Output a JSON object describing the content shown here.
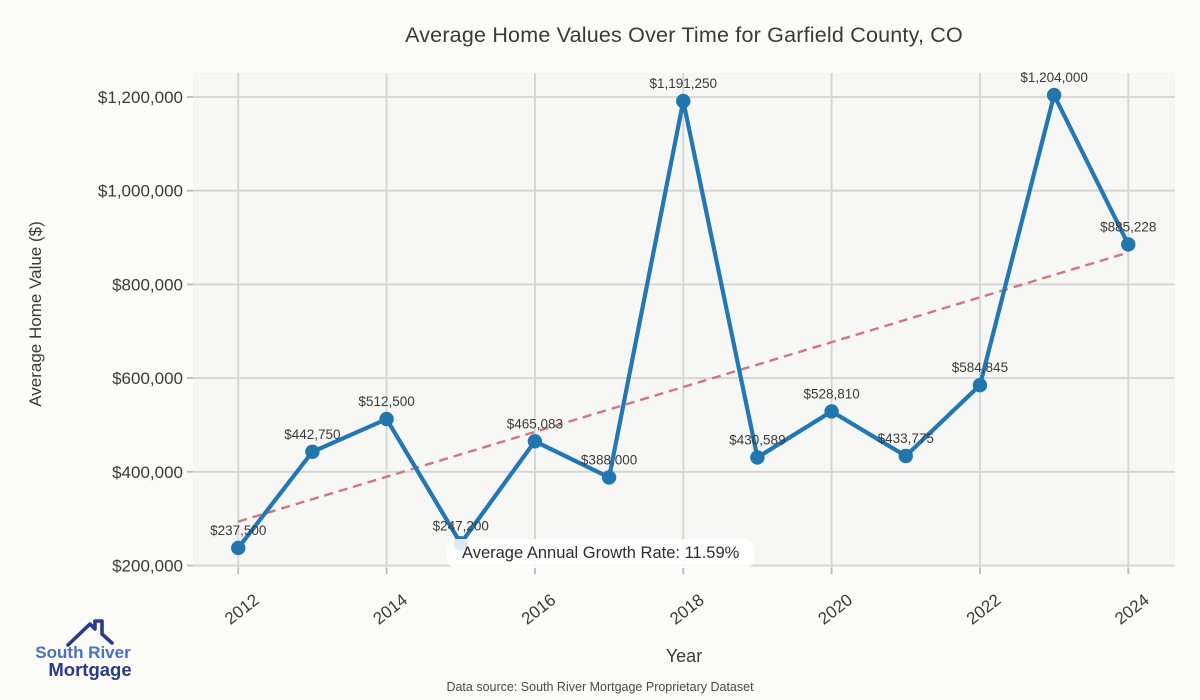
{
  "title": "Average Home Values Over Time for Garfield County, CO",
  "axes": {
    "x_label": "Year",
    "y_label": "Average Home Value ($)",
    "x_tick_labels": [
      "2012",
      "2014",
      "2016",
      "2018",
      "2020",
      "2022",
      "2024"
    ],
    "y_tick_labels": [
      "$200,000",
      "$400,000",
      "$600,000",
      "$800,000",
      "$1,000,000",
      "$1,200,000"
    ]
  },
  "annotation": {
    "text": "Average Annual Growth Rate: 11.59%"
  },
  "footer": {
    "text": "Data source: South River Mortgage Proprietary Dataset"
  },
  "logo": {
    "name_top": "South River",
    "name_bottom": "Mortgage"
  },
  "colors": {
    "line": "#2277b4",
    "marker": "#2176ae",
    "trend": "#d4767c",
    "plot_bg": "#f7f7f6",
    "grid": "#d4d4d4",
    "tick": "#b9b9b9",
    "text": "#3a3a3a",
    "logo_blue": "#4a70c4",
    "logo_navy": "#2b3a8f"
  },
  "chart_data": {
    "type": "line",
    "title": "Average Home Values Over Time for Garfield County, CO",
    "xlabel": "Year",
    "ylabel": "Average Home Value ($)",
    "x": [
      2012,
      2013,
      2014,
      2015,
      2016,
      2017,
      2018,
      2019,
      2020,
      2021,
      2022,
      2023,
      2024
    ],
    "values": [
      237500,
      442750,
      512500,
      247200,
      465083,
      388000,
      1191250,
      430589,
      528810,
      433775,
      584845,
      1204000,
      885228
    ],
    "point_labels": [
      "$237,500",
      "$442,750",
      "$512,500",
      "$247,200",
      "$465,083",
      "$388,000",
      "$1,191,250",
      "$430,589",
      "$528,810",
      "$433,775",
      "$584,845",
      "$1,204,000",
      "$885,228"
    ],
    "x_tick_values": [
      2012,
      2014,
      2016,
      2018,
      2020,
      2022,
      2024
    ],
    "y_tick_values": [
      200000,
      400000,
      600000,
      800000,
      1000000,
      1200000
    ],
    "xlim": [
      2011.39,
      2024.63
    ],
    "ylim": [
      194660,
      1251230
    ],
    "grid": true,
    "legend": "none",
    "trendline": {
      "type": "linear_regression",
      "style": "dashed",
      "x_range": [
        2012,
        2024
      ],
      "annotation": "Average Annual Growth Rate: 11.59%"
    },
    "average_annual_growth_rate_pct": 11.59
  }
}
